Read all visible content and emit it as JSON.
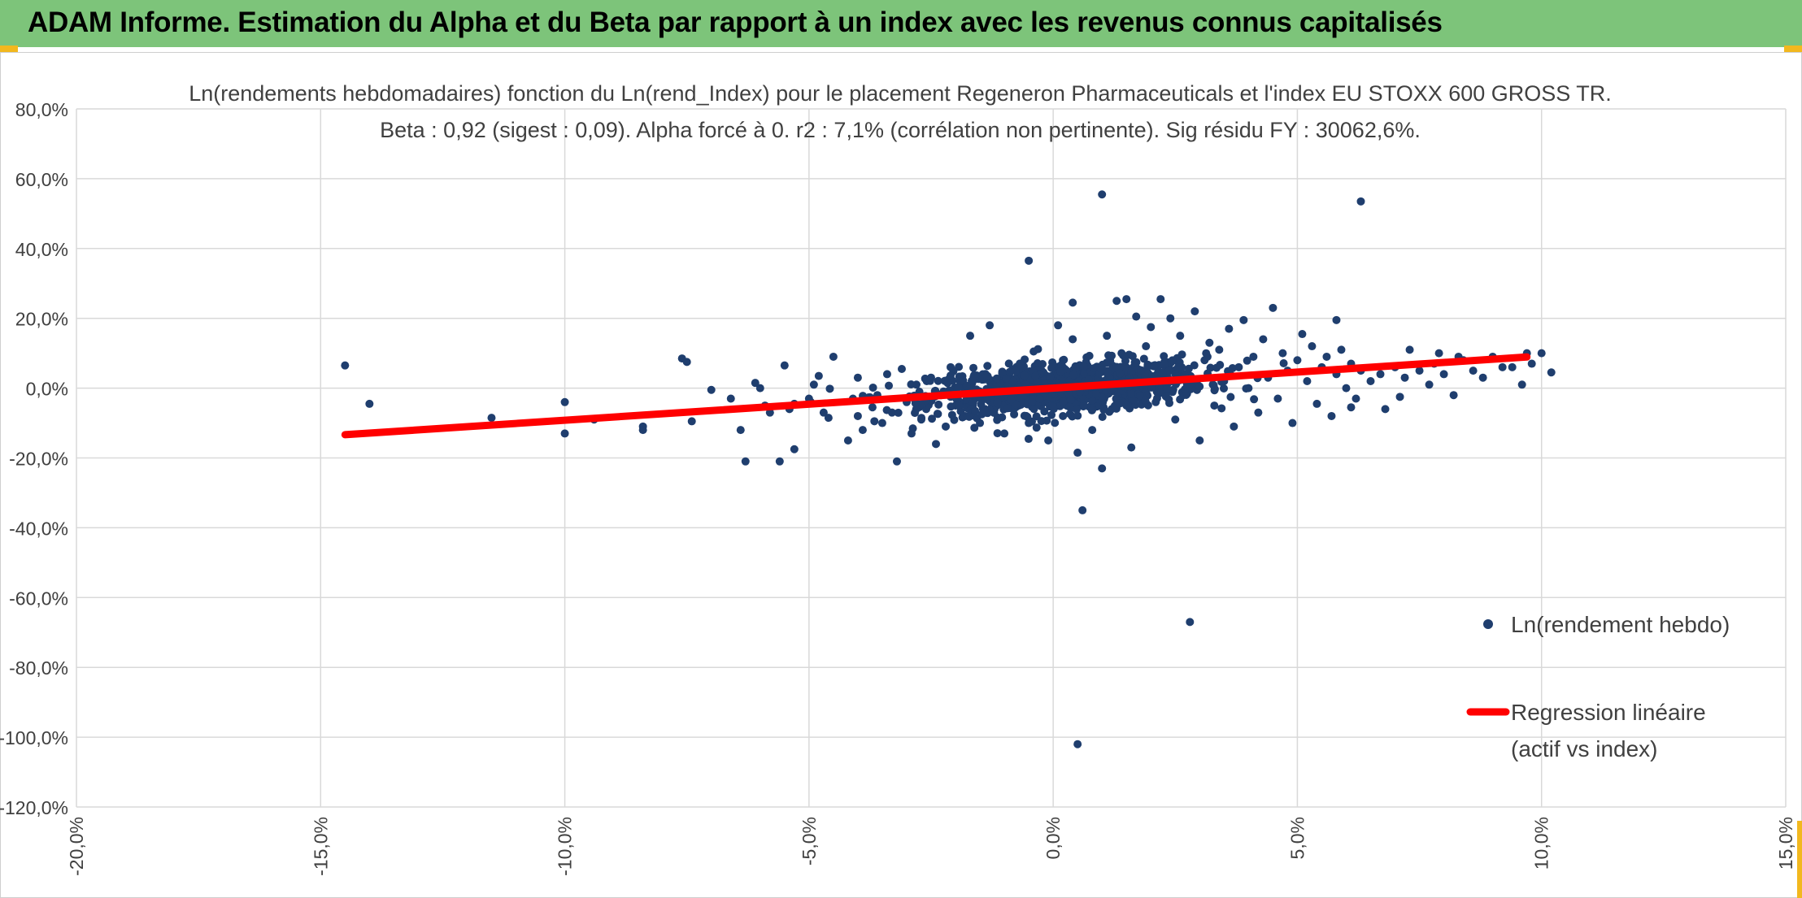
{
  "banner": {
    "title": "ADAM Informe. Estimation du Alpha et du Beta par rapport à un index avec les revenus connus capitalisés"
  },
  "colors": {
    "banner": "#7dc47a",
    "accent": "#f2b81e",
    "points": "#1f3e6e",
    "regression": "#ff0000",
    "grid": "#d9d9d9"
  },
  "chart_data": {
    "type": "scatter",
    "title_line1": "Ln(rendements hebdomadaires) fonction du Ln(rend_Index) pour le placement Regeneron Pharmaceuticals et l'index EU STOXX 600 GROSS TR.",
    "title_line2": "Beta : 0,92 (sigest : 0,09). Alpha forcé à 0. r2 : 7,1% (corrélation non pertinente). Sig résidu FY : 30062,6%.",
    "xlim": [
      -0.2,
      0.15
    ],
    "ylim": [
      -1.2,
      0.8
    ],
    "x_ticks": [
      "-20,0%",
      "-15,0%",
      "-10,0%",
      "-5,0%",
      "0,0%",
      "5,0%",
      "10,0%",
      "15,0%"
    ],
    "y_ticks": [
      "80,0%",
      "60,0%",
      "40,0%",
      "20,0%",
      "0,0%",
      "-20,0%",
      "-40,0%",
      "-60,0%",
      "-80,0%",
      "-100,0%",
      "-120,0%"
    ],
    "grid": true,
    "legend_position": "right",
    "series": [
      {
        "name": "Ln(rendement hebdo)",
        "kind": "scatter",
        "points": [
          [
            -0.145,
            0.065
          ],
          [
            -0.14,
            -0.045
          ],
          [
            -0.115,
            -0.085
          ],
          [
            -0.1,
            -0.13
          ],
          [
            -0.1,
            -0.04
          ],
          [
            -0.094,
            -0.09
          ],
          [
            -0.084,
            -0.11
          ],
          [
            -0.084,
            -0.12
          ],
          [
            -0.076,
            0.085
          ],
          [
            -0.075,
            0.075
          ],
          [
            -0.074,
            -0.095
          ],
          [
            -0.07,
            -0.005
          ],
          [
            -0.066,
            -0.03
          ],
          [
            -0.064,
            -0.12
          ],
          [
            -0.063,
            -0.21
          ],
          [
            -0.061,
            0.015
          ],
          [
            -0.06,
            0.0
          ],
          [
            -0.059,
            -0.05
          ],
          [
            -0.058,
            -0.07
          ],
          [
            -0.056,
            -0.21
          ],
          [
            -0.055,
            0.065
          ],
          [
            -0.054,
            -0.06
          ],
          [
            -0.053,
            -0.175
          ],
          [
            -0.053,
            -0.045
          ],
          [
            -0.05,
            -0.03
          ],
          [
            -0.049,
            0.01
          ],
          [
            -0.048,
            0.035
          ],
          [
            -0.047,
            -0.07
          ],
          [
            -0.046,
            -0.085
          ],
          [
            -0.045,
            0.09
          ],
          [
            -0.042,
            -0.15
          ],
          [
            -0.041,
            -0.03
          ],
          [
            -0.04,
            -0.08
          ],
          [
            -0.04,
            0.03
          ],
          [
            -0.039,
            -0.12
          ],
          [
            -0.037,
            -0.055
          ],
          [
            -0.036,
            -0.02
          ],
          [
            -0.035,
            -0.1
          ],
          [
            -0.034,
            0.04
          ],
          [
            -0.033,
            -0.07
          ],
          [
            -0.032,
            -0.21
          ],
          [
            -0.031,
            0.055
          ],
          [
            -0.03,
            -0.04
          ],
          [
            -0.029,
            -0.13
          ],
          [
            -0.028,
            0.01
          ],
          [
            -0.027,
            -0.09
          ],
          [
            -0.026,
            -0.06
          ],
          [
            -0.025,
            0.03
          ],
          [
            -0.024,
            -0.16
          ],
          [
            -0.023,
            -0.02
          ],
          [
            -0.022,
            -0.11
          ],
          [
            -0.021,
            0.06
          ],
          [
            -0.02,
            -0.05
          ],
          [
            -0.019,
            0.005
          ],
          [
            -0.018,
            -0.08
          ],
          [
            -0.017,
            0.15
          ],
          [
            -0.016,
            -0.03
          ],
          [
            -0.015,
            -0.1
          ],
          [
            -0.014,
            0.025
          ],
          [
            -0.013,
            0.18
          ],
          [
            -0.012,
            -0.06
          ],
          [
            -0.011,
            -0.01
          ],
          [
            -0.01,
            -0.13
          ],
          [
            -0.009,
            0.04
          ],
          [
            -0.008,
            -0.075
          ],
          [
            -0.007,
            0.02
          ],
          [
            -0.006,
            -0.04
          ],
          [
            -0.005,
            0.365
          ],
          [
            -0.005,
            -0.1
          ],
          [
            -0.004,
            0.105
          ],
          [
            -0.003,
            -0.02
          ],
          [
            -0.002,
            0.045
          ],
          [
            -0.001,
            -0.15
          ],
          [
            0.0,
            0.01
          ],
          [
            0.001,
            0.18
          ],
          [
            0.002,
            -0.08
          ],
          [
            0.002,
            0.08
          ],
          [
            0.003,
            -0.03
          ],
          [
            0.004,
            0.245
          ],
          [
            0.004,
            0.14
          ],
          [
            0.005,
            -0.185
          ],
          [
            0.005,
            -1.02
          ],
          [
            0.006,
            -0.35
          ],
          [
            0.006,
            0.02
          ],
          [
            0.007,
            0.065
          ],
          [
            0.008,
            -0.12
          ],
          [
            0.009,
            0.03
          ],
          [
            0.01,
            -0.23
          ],
          [
            0.01,
            0.555
          ],
          [
            0.011,
            0.15
          ],
          [
            0.012,
            -0.06
          ],
          [
            0.013,
            0.25
          ],
          [
            0.014,
            0.1
          ],
          [
            0.015,
            0.255
          ],
          [
            0.016,
            -0.17
          ],
          [
            0.016,
            0.01
          ],
          [
            0.017,
            0.205
          ],
          [
            0.018,
            -0.01
          ],
          [
            0.019,
            0.12
          ],
          [
            0.02,
            0.175
          ],
          [
            0.021,
            -0.04
          ],
          [
            0.022,
            0.255
          ],
          [
            0.023,
            0.06
          ],
          [
            0.024,
            0.2
          ],
          [
            0.025,
            -0.09
          ],
          [
            0.026,
            0.15
          ],
          [
            0.027,
            0.04
          ],
          [
            0.028,
            -0.67
          ],
          [
            0.029,
            0.22
          ],
          [
            0.03,
            -0.15
          ],
          [
            0.031,
            0.08
          ],
          [
            0.032,
            0.13
          ],
          [
            0.033,
            -0.05
          ],
          [
            0.034,
            0.11
          ],
          [
            0.035,
            0.02
          ],
          [
            0.036,
            0.17
          ],
          [
            0.037,
            -0.11
          ],
          [
            0.038,
            0.06
          ],
          [
            0.039,
            0.195
          ],
          [
            0.04,
            0.0
          ],
          [
            0.041,
            0.09
          ],
          [
            0.042,
            -0.07
          ],
          [
            0.043,
            0.14
          ],
          [
            0.044,
            0.03
          ],
          [
            0.045,
            0.23
          ],
          [
            0.046,
            -0.03
          ],
          [
            0.047,
            0.1
          ],
          [
            0.048,
            0.05
          ],
          [
            0.049,
            -0.1
          ],
          [
            0.05,
            0.08
          ],
          [
            0.051,
            0.155
          ],
          [
            0.052,
            0.02
          ],
          [
            0.053,
            0.12
          ],
          [
            0.054,
            -0.045
          ],
          [
            0.055,
            0.06
          ],
          [
            0.056,
            0.09
          ],
          [
            0.057,
            -0.08
          ],
          [
            0.058,
            0.04
          ],
          [
            0.059,
            0.11
          ],
          [
            0.06,
            0.0
          ],
          [
            0.061,
            0.07
          ],
          [
            0.062,
            -0.03
          ],
          [
            0.063,
            0.05
          ],
          [
            0.065,
            0.02
          ],
          [
            0.067,
            0.04
          ],
          [
            0.068,
            -0.06
          ],
          [
            0.07,
            0.06
          ],
          [
            0.072,
            0.03
          ],
          [
            0.073,
            0.11
          ],
          [
            0.075,
            0.05
          ],
          [
            0.077,
            0.01
          ],
          [
            0.078,
            0.07
          ],
          [
            0.08,
            0.04
          ],
          [
            0.082,
            -0.02
          ],
          [
            0.084,
            0.08
          ],
          [
            0.086,
            0.05
          ],
          [
            0.088,
            0.03
          ],
          [
            0.09,
            0.09
          ],
          [
            0.092,
            0.06
          ],
          [
            0.094,
            0.06
          ],
          [
            0.096,
            0.01
          ],
          [
            0.098,
            0.07
          ],
          [
            0.1,
            0.1
          ],
          [
            0.102,
            0.045
          ],
          [
            0.061,
            -0.055
          ],
          [
            0.063,
            0.535
          ],
          [
            0.058,
            0.195
          ],
          [
            0.071,
            -0.025
          ],
          [
            0.079,
            0.1
          ],
          [
            0.083,
            0.09
          ],
          [
            0.097,
            0.1
          ]
        ]
      },
      {
        "name": "Regression linéaire (actif vs index)",
        "name_line1": "Regression linéaire",
        "name_line2": "(actif vs index)",
        "kind": "line",
        "slope": 0.92,
        "intercept": 0,
        "x_range": [
          -0.145,
          0.097
        ]
      }
    ]
  }
}
